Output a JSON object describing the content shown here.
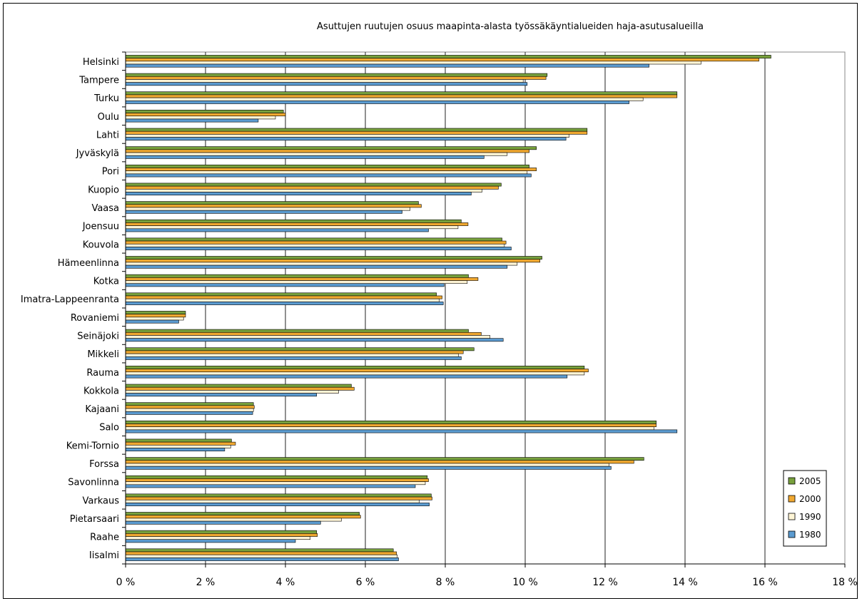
{
  "chart_data": {
    "type": "bar",
    "orientation": "horizontal",
    "title": "Asuttujen ruutujen osuus maapinta-alasta työssäkäyntialueiden haja-asutusalueilla",
    "xlabel": "",
    "ylabel": "",
    "xlim": [
      0,
      18
    ],
    "x_ticks": [
      0,
      2,
      4,
      6,
      8,
      10,
      12,
      14,
      16,
      18
    ],
    "x_tick_labels": [
      "0 %",
      "2 %",
      "4 %",
      "6 %",
      "8 %",
      "10 %",
      "12 %",
      "14 %",
      "16 %",
      "18 %"
    ],
    "grid": "vertical",
    "legend_position": "bottom-right",
    "categories": [
      "Helsinki",
      "Tampere",
      "Turku",
      "Oulu",
      "Lahti",
      "Jyväskylä",
      "Pori",
      "Kuopio",
      "Vaasa",
      "Joensuu",
      "Kouvola",
      "Hämeenlinna",
      "Kotka",
      "Imatra-Lappeenranta",
      "Rovaniemi",
      "Seinäjoki",
      "Mikkeli",
      "Rauma",
      "Kokkola",
      "Kajaani",
      "Salo",
      "Kemi-Tornio",
      "Forssa",
      "Savonlinna",
      "Varkaus",
      "Pietarsaari",
      "Raahe",
      "Iisalmi"
    ],
    "series": [
      {
        "name": "2005",
        "color": "#77a03c",
        "values": [
          16.15,
          10.55,
          13.8,
          3.95,
          11.55,
          10.28,
          10.1,
          9.4,
          7.33,
          8.4,
          9.42,
          10.42,
          8.58,
          7.78,
          1.5,
          8.58,
          8.72,
          11.48,
          5.65,
          3.2,
          13.28,
          2.65,
          12.97,
          7.55,
          7.65,
          5.85,
          4.78,
          6.7
        ]
      },
      {
        "name": "2000",
        "color": "#f0a830",
        "values": [
          15.85,
          10.52,
          13.8,
          4.0,
          11.55,
          10.1,
          10.28,
          9.33,
          7.4,
          8.57,
          9.52,
          10.37,
          8.82,
          7.92,
          1.5,
          8.9,
          8.45,
          11.58,
          5.72,
          3.22,
          13.28,
          2.75,
          12.72,
          7.58,
          7.67,
          5.88,
          4.8,
          6.78
        ]
      },
      {
        "name": "1990",
        "color": "#fff5d6",
        "values": [
          14.4,
          9.95,
          12.95,
          3.75,
          11.1,
          9.55,
          10.05,
          8.92,
          7.12,
          8.32,
          9.48,
          9.8,
          8.55,
          7.85,
          1.45,
          9.12,
          8.33,
          11.48,
          5.33,
          3.2,
          13.22,
          2.63,
          12.1,
          7.5,
          7.35,
          5.4,
          4.62,
          6.8
        ]
      },
      {
        "name": "1980",
        "color": "#5b9bd0",
        "values": [
          13.1,
          10.05,
          12.6,
          3.32,
          11.02,
          8.97,
          10.15,
          8.65,
          6.92,
          7.58,
          9.65,
          9.55,
          7.97,
          7.95,
          1.33,
          9.45,
          8.4,
          11.05,
          4.78,
          3.18,
          13.8,
          2.48,
          12.15,
          7.25,
          7.6,
          4.88,
          4.25,
          6.83
        ]
      }
    ]
  }
}
